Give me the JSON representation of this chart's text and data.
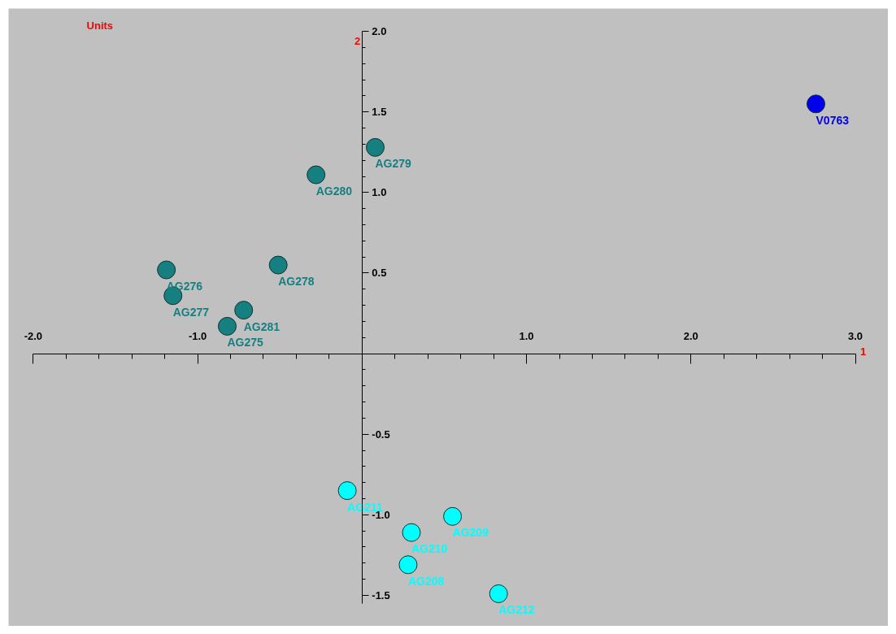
{
  "chart_data": {
    "type": "scatter",
    "title": "Units",
    "xlabel": "1",
    "ylabel": "2",
    "marker": "circle",
    "xlim": [
      -2.0,
      3.0
    ],
    "ylim": [
      -1.55,
      2.0
    ],
    "xticks": [
      {
        "value": -2.0,
        "label": "-2.0"
      },
      {
        "value": -1.0,
        "label": "-1.0"
      },
      {
        "value": 0,
        "label": null
      },
      {
        "value": 1.0,
        "label": "1.0"
      },
      {
        "value": 2.0,
        "label": "2.0"
      },
      {
        "value": 3.0,
        "label": "3.0"
      }
    ],
    "yticks": [
      {
        "value": -1.5,
        "label": "-1.5"
      },
      {
        "value": -1.0,
        "label": "-1.0"
      },
      {
        "value": -0.5,
        "label": "-0.5"
      },
      {
        "value": 0,
        "label": null
      },
      {
        "value": 0.5,
        "label": "0.5"
      },
      {
        "value": 1.0,
        "label": "1.0"
      },
      {
        "value": 1.5,
        "label": "1.5"
      },
      {
        "value": 2.0,
        "label": "2.0"
      }
    ],
    "series": [
      {
        "color": "#168080",
        "x": [
          0.08,
          -0.28,
          -0.51,
          -1.19,
          -1.15,
          -0.72,
          -0.82
        ],
        "values": [
          1.28,
          1.11,
          0.55,
          0.52,
          0.36,
          0.27,
          0.17
        ]
      },
      {
        "color": "#00ffff",
        "x": [
          -0.09,
          0.55,
          0.3,
          0.28,
          0.83
        ],
        "values": [
          -0.85,
          -1.01,
          -1.11,
          -1.31,
          -1.49
        ]
      },
      {
        "color": "#0000ee",
        "x": [
          2.76
        ],
        "values": [
          1.55
        ]
      }
    ],
    "annotations": [
      {
        "text": "AG279",
        "x": 0.08,
        "y": 1.28
      },
      {
        "text": "AG280",
        "x": -0.28,
        "y": 1.11
      },
      {
        "text": "AG278",
        "x": -0.51,
        "y": 0.55
      },
      {
        "text": "AG276",
        "x": -1.19,
        "y": 0.52
      },
      {
        "text": "AG277",
        "x": -1.15,
        "y": 0.36
      },
      {
        "text": "AG281",
        "x": -0.72,
        "y": 0.27
      },
      {
        "text": "AG275",
        "x": -0.82,
        "y": 0.17
      },
      {
        "text": "AG211",
        "x": -0.09,
        "y": -0.85
      },
      {
        "text": "AG209",
        "x": 0.55,
        "y": -1.01
      },
      {
        "text": "AG210",
        "x": 0.3,
        "y": -1.11
      },
      {
        "text": "AG208",
        "x": 0.28,
        "y": -1.31
      },
      {
        "text": "AG212",
        "x": 0.83,
        "y": -1.49
      },
      {
        "text": "V0763",
        "x": 2.76,
        "y": 1.55
      }
    ]
  }
}
